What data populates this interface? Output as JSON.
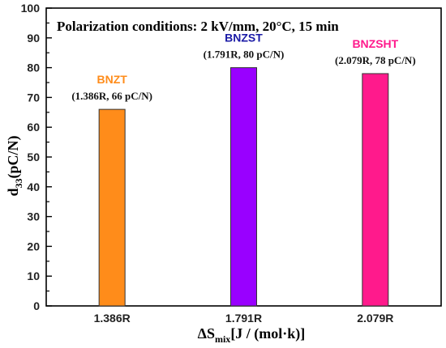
{
  "chart_data": {
    "type": "bar",
    "title": "Polarization conditions: 2 kV/mm, 20°C, 15 min",
    "ylabel": {
      "main": "d",
      "sub": "33",
      "rest": "(pC/N)"
    },
    "xlabel": {
      "main": "ΔS",
      "sub": "mix",
      "rest": "[J / (mol·k)]"
    },
    "ylim": [
      0,
      100
    ],
    "yticks": [
      0,
      10,
      20,
      30,
      40,
      50,
      60,
      70,
      80,
      90,
      100
    ],
    "categories": [
      "1.386R",
      "1.791R",
      "2.079R"
    ],
    "values": [
      66,
      80,
      78
    ],
    "bar_colors": [
      "#ff8c1a",
      "#9900ff",
      "#ff1a8c"
    ],
    "annotations": [
      {
        "name": "BNZT",
        "detail": "(1.386R, 66 pC/N)",
        "color": "#ff8c1a"
      },
      {
        "name": "BNZST",
        "detail": "(1.791R, 80 pC/N)",
        "color": "#1a1aa6"
      },
      {
        "name": "BNZSHT",
        "detail": "(2.079R, 78 pC/N)",
        "color": "#ff1a8c"
      }
    ],
    "grid": false,
    "legend": "none"
  }
}
